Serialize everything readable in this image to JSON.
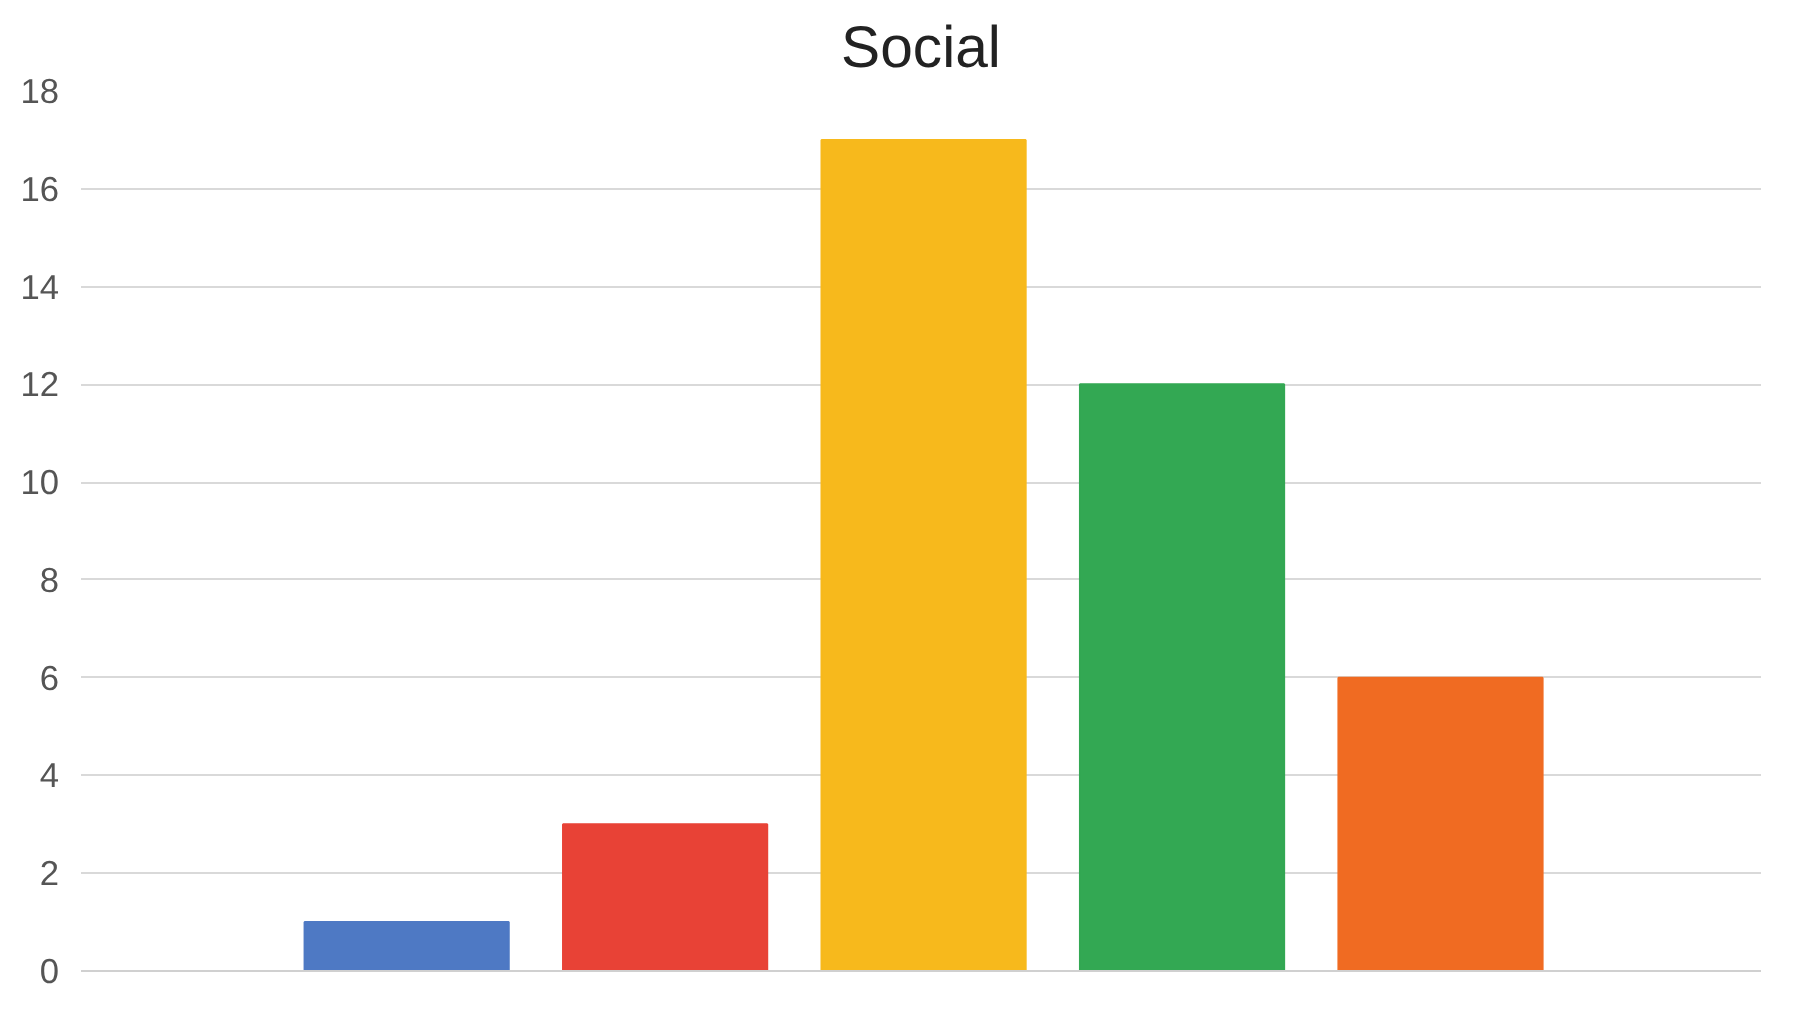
{
  "chart_data": {
    "type": "bar",
    "title": "Social",
    "categories": [
      null,
      null,
      null,
      null,
      null
    ],
    "values": [
      1,
      3,
      17,
      12,
      6
    ],
    "colors": [
      "#4e79c4",
      "#e84236",
      "#f7b91c",
      "#33a853",
      "#f06b22"
    ],
    "ylim": [
      0,
      18
    ],
    "yticks": [
      0,
      2,
      4,
      6,
      8,
      10,
      12,
      14,
      16,
      18
    ],
    "grid": "y"
  }
}
